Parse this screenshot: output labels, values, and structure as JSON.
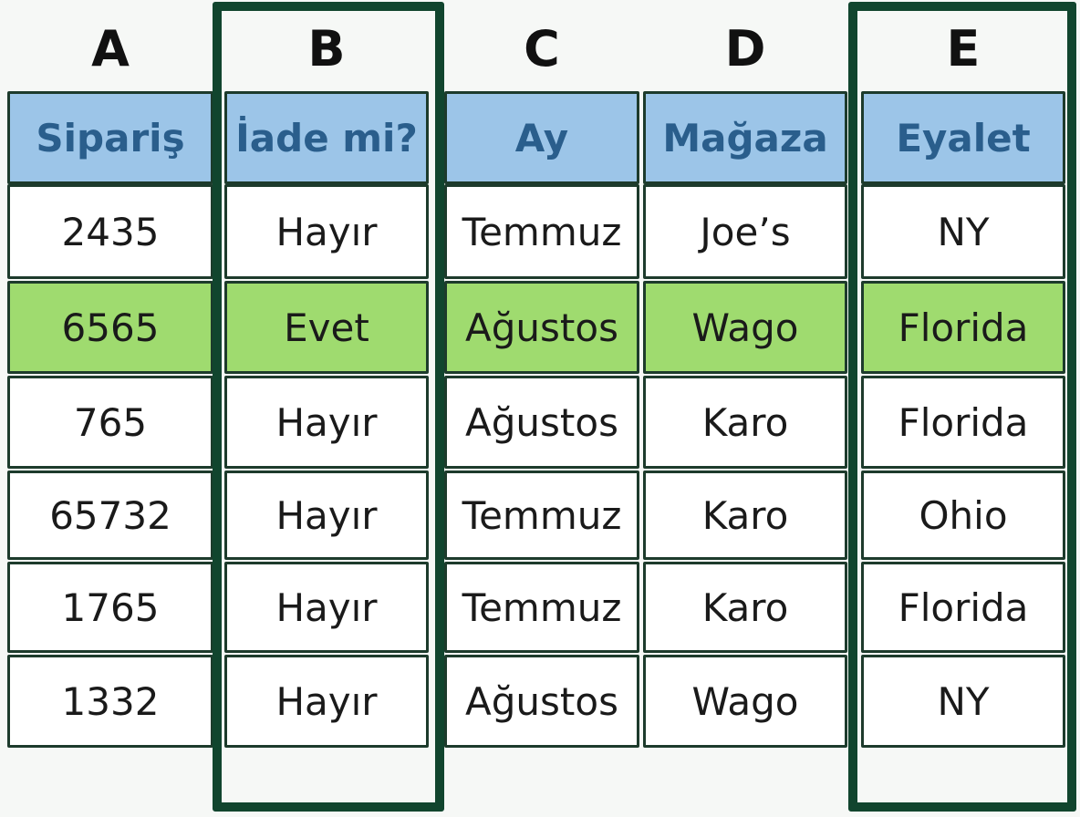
{
  "colors": {
    "header_bg": "#9cc5e8",
    "header_text": "#2a5e8c",
    "highlight_bg": "#9fdb6f",
    "row_bg": "#ffffff",
    "outline": "#11452e"
  },
  "highlighted_row": 1,
  "outlined_columns": [
    1,
    4
  ],
  "table": {
    "column_letters": [
      "A",
      "B",
      "C",
      "D",
      "E"
    ],
    "headers": [
      "Sipariş",
      "İade mi?",
      "Ay",
      "Mağaza",
      "Eyalet"
    ],
    "rows": [
      [
        "2435",
        "Hayır",
        "Temmuz",
        "Joe’s",
        "NY"
      ],
      [
        "6565",
        "Evet",
        "Ağustos",
        "Wago",
        "Florida"
      ],
      [
        "765",
        "Hayır",
        "Ağustos",
        "Karo",
        "Florida"
      ],
      [
        "65732",
        "Hayır",
        "Temmuz",
        "Karo",
        "Ohio"
      ],
      [
        "1765",
        "Hayır",
        "Temmuz",
        "Karo",
        "Florida"
      ],
      [
        "1332",
        "Hayır",
        "Ağustos",
        "Wago",
        "NY"
      ]
    ]
  }
}
